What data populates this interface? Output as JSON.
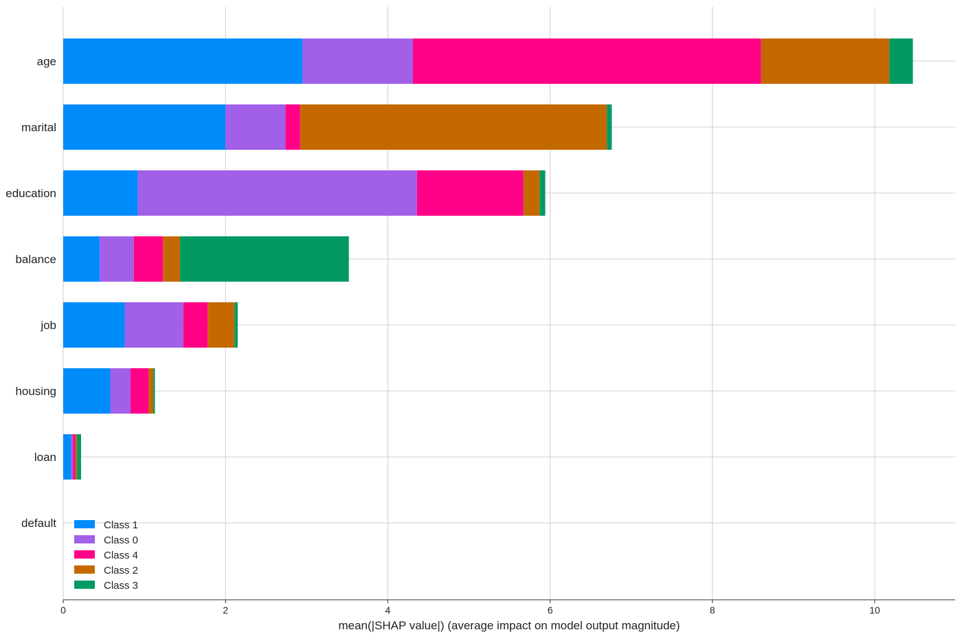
{
  "chart_data": {
    "type": "bar",
    "orientation": "horizontal",
    "stacked": true,
    "categories": [
      "age",
      "marital",
      "education",
      "balance",
      "job",
      "housing",
      "loan",
      "default"
    ],
    "series": [
      {
        "name": "Class 1",
        "color": "#008bfb",
        "values": [
          2.95,
          2.0,
          0.92,
          0.45,
          0.76,
          0.58,
          0.1,
          0.0
        ]
      },
      {
        "name": "Class 0",
        "color": "#a25fe8",
        "values": [
          1.36,
          0.74,
          3.44,
          0.42,
          0.72,
          0.25,
          0.02,
          0.0
        ]
      },
      {
        "name": "Class 4",
        "color": "#ff0087",
        "values": [
          4.29,
          0.18,
          1.31,
          0.36,
          0.3,
          0.22,
          0.03,
          0.0
        ]
      },
      {
        "name": "Class 2",
        "color": "#c46900",
        "values": [
          1.58,
          3.78,
          0.2,
          0.21,
          0.33,
          0.06,
          0.02,
          0.0
        ]
      },
      {
        "name": "Class 3",
        "color": "#009a62",
        "values": [
          0.29,
          0.06,
          0.07,
          2.08,
          0.04,
          0.02,
          0.05,
          0.0
        ]
      }
    ],
    "xlabel": "mean(|SHAP value|) (average impact on model output magnitude)",
    "ylabel": "",
    "title": "",
    "xlim": [
      0,
      11
    ],
    "xticks": [
      "0",
      "2",
      "4",
      "6",
      "8",
      "10"
    ],
    "xtick_values": [
      0,
      2,
      4,
      6,
      8,
      10
    ],
    "grid": true,
    "legend_position": "bottom-left"
  }
}
